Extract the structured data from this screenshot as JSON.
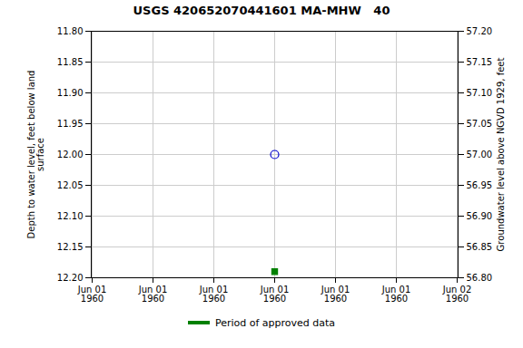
{
  "chart_data": {
    "type": "scatter",
    "title": "USGS 420652070441601 MA-MHW   40",
    "ylabel": "Depth to water level, feet below land\nsurface",
    "y2label": "Groundwater level above NGVD 1929, feet",
    "categories": [
      "Jun 01\n1960",
      "Jun 01\n1960",
      "Jun 01\n1960",
      "Jun 01\n1960",
      "Jun 01\n1960",
      "Jun 01\n1960",
      "Jun 02\n1960"
    ],
    "series": [
      {
        "color": "#0000cc",
        "marker": "circle-open",
        "values": [
          null,
          null,
          null,
          12.0,
          null,
          null,
          null
        ]
      },
      {
        "name": "Period of approved data",
        "color": "#008000",
        "marker": "square",
        "values": [
          null,
          null,
          null,
          12.19,
          null,
          null,
          null
        ]
      }
    ],
    "ylim": [
      12.2,
      11.8
    ],
    "yticks": [
      {
        "value": 11.8,
        "label": "11.80"
      },
      {
        "value": 11.85,
        "label": "11.85"
      },
      {
        "value": 11.9,
        "label": "11.90"
      },
      {
        "value": 11.95,
        "label": "11.95"
      },
      {
        "value": 12.0,
        "label": "12.00"
      },
      {
        "value": 12.05,
        "label": "12.05"
      },
      {
        "value": 12.1,
        "label": "12.10"
      },
      {
        "value": 12.15,
        "label": "12.15"
      },
      {
        "value": 12.2,
        "label": "12.20"
      }
    ],
    "y2lim": [
      56.8,
      57.2
    ],
    "y2ticks": [
      {
        "value": 57.2,
        "label": "57.20"
      },
      {
        "value": 57.15,
        "label": "57.15"
      },
      {
        "value": 57.1,
        "label": "57.10"
      },
      {
        "value": 57.05,
        "label": "57.05"
      },
      {
        "value": 57.0,
        "label": "57.00"
      },
      {
        "value": 56.95,
        "label": "56.95"
      },
      {
        "value": 56.9,
        "label": "56.90"
      },
      {
        "value": 56.85,
        "label": "56.85"
      },
      {
        "value": 56.8,
        "label": "56.80"
      }
    ],
    "grid": true,
    "legend": "bottom"
  }
}
